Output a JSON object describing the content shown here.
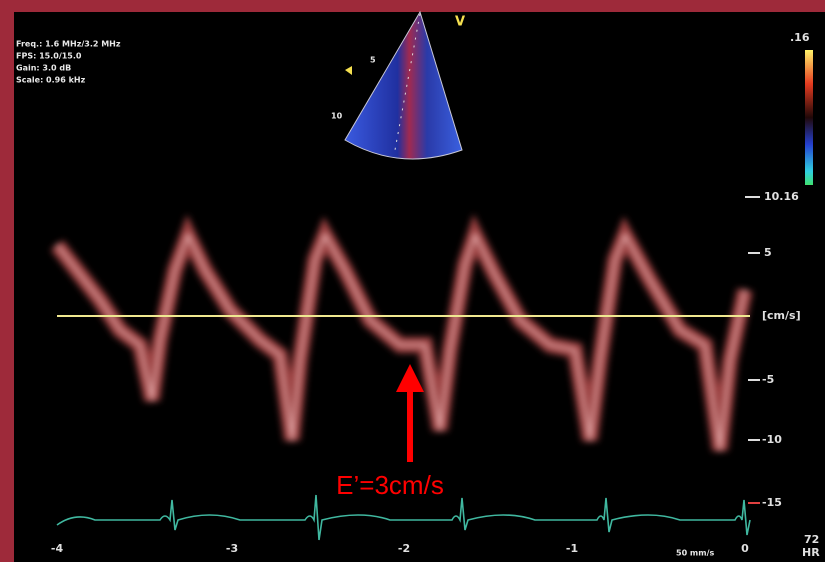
{
  "info": [
    "Freq.: 1.6 MHz/3.2 MHz",
    "FPS: 15.0/15.0",
    "Gain: 3.0 dB",
    "Scale: 0.96 kHz"
  ],
  "sector": {
    "marker": "V",
    "depths": [
      "5",
      "10"
    ]
  },
  "color_scale": {
    "max": ".16"
  },
  "velocity_axis": {
    "top": "10.16",
    "ticks": [
      "5",
      "[cm/s]",
      "-5",
      "-10",
      "-15"
    ]
  },
  "time_axis": {
    "ticks": [
      "-4",
      "-3",
      "-2",
      "-1",
      "0"
    ],
    "speed": "50 mm/s"
  },
  "heart_rate": {
    "value": "72",
    "label": "HR"
  },
  "annotation": "E’=3cm/s"
}
